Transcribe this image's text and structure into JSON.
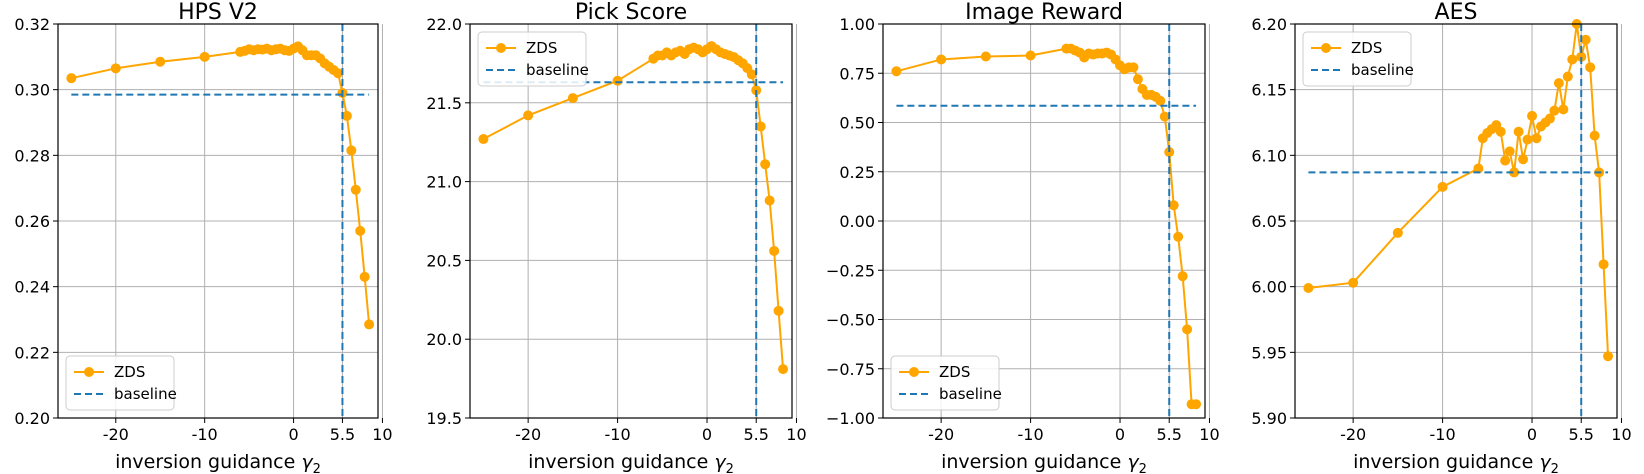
{
  "chart_data": [
    {
      "type": "line",
      "title": "HPS V2",
      "xlabel": "inversion guidance γ₂",
      "ylabel": "",
      "xlim": [
        -26.5,
        9.5
      ],
      "ylim": [
        0.2,
        0.32
      ],
      "x_ticks": [
        -20,
        -10,
        0,
        5.5,
        10
      ],
      "x_tick_labels": [
        "-20",
        "-10",
        "0",
        "5.5",
        "10"
      ],
      "y_ticks": [
        0.2,
        0.22,
        0.24,
        0.26,
        0.28,
        0.3,
        0.32
      ],
      "y_tick_labels": [
        "0.20",
        "0.22",
        "0.24",
        "0.26",
        "0.28",
        "0.30",
        "0.32"
      ],
      "grid": true,
      "legend_position": "lower-left",
      "series": [
        {
          "name": "ZDS",
          "color": "#ffa500",
          "style": "line-markers",
          "x": [
            -25,
            -20,
            -15,
            -10,
            -6,
            -5.5,
            -5,
            -4.5,
            -4,
            -3.5,
            -3,
            -2.5,
            -2,
            -1.5,
            -1,
            -0.5,
            0,
            0.5,
            1,
            1.5,
            2,
            2.5,
            3,
            3.5,
            4,
            4.5,
            5,
            5.5,
            6,
            6.5,
            7,
            7.5,
            8,
            8.5
          ],
          "y": [
            0.3035,
            0.3065,
            0.3085,
            0.31,
            0.3115,
            0.3118,
            0.3123,
            0.312,
            0.3123,
            0.3122,
            0.3125,
            0.312,
            0.3123,
            0.3125,
            0.312,
            0.3118,
            0.3125,
            0.3132,
            0.312,
            0.3105,
            0.3105,
            0.3105,
            0.3095,
            0.308,
            0.307,
            0.306,
            0.305,
            0.299,
            0.292,
            0.2815,
            0.2695,
            0.257,
            0.243,
            0.2285
          ]
        },
        {
          "name": "baseline",
          "color": "#1f77b4",
          "style": "dashed",
          "x": [
            -25,
            8.5
          ],
          "y": [
            0.2985,
            0.2985
          ]
        }
      ],
      "vline": 5.5
    },
    {
      "type": "line",
      "title": "Pick Score",
      "xlabel": "inversion guidance γ₂",
      "ylabel": "",
      "xlim": [
        -26.5,
        9.5
      ],
      "ylim": [
        19.5,
        22.0
      ],
      "x_ticks": [
        -20,
        -10,
        0,
        5.5,
        10
      ],
      "x_tick_labels": [
        "-20",
        "-10",
        "0",
        "5.5",
        "10"
      ],
      "y_ticks": [
        19.5,
        20.0,
        20.5,
        21.0,
        21.5,
        22.0
      ],
      "y_tick_labels": [
        "19.5",
        "20.0",
        "20.5",
        "21.0",
        "21.5",
        "22.0"
      ],
      "grid": true,
      "legend_position": "upper-left",
      "series": [
        {
          "name": "ZDS",
          "color": "#ffa500",
          "style": "line-markers",
          "x": [
            -25,
            -20,
            -15,
            -10,
            -6,
            -5.5,
            -5,
            -4.5,
            -4,
            -3.5,
            -3,
            -2.5,
            -2,
            -1.5,
            -1,
            -0.5,
            0,
            0.5,
            1,
            1.5,
            2,
            2.5,
            3,
            3.5,
            4,
            4.5,
            5,
            5.5,
            6,
            6.5,
            7,
            7.5,
            8,
            8.5
          ],
          "y": [
            21.27,
            21.42,
            21.53,
            21.64,
            21.78,
            21.8,
            21.8,
            21.82,
            21.8,
            21.82,
            21.83,
            21.81,
            21.84,
            21.85,
            21.84,
            21.82,
            21.84,
            21.86,
            21.84,
            21.82,
            21.81,
            21.8,
            21.79,
            21.77,
            21.75,
            21.72,
            21.68,
            21.58,
            21.35,
            21.11,
            20.88,
            20.56,
            20.18,
            19.81
          ]
        },
        {
          "name": "baseline",
          "color": "#1f77b4",
          "style": "dashed",
          "x": [
            -25,
            8.5
          ],
          "y": [
            21.63,
            21.63
          ]
        }
      ],
      "vline": 5.5
    },
    {
      "type": "line",
      "title": "Image Reward",
      "xlabel": "inversion guidance γ₂",
      "ylabel": "",
      "xlim": [
        -26.5,
        9.5
      ],
      "ylim": [
        -1.0,
        1.0
      ],
      "x_ticks": [
        -20,
        -10,
        0,
        5.5,
        10
      ],
      "x_tick_labels": [
        "-20",
        "-10",
        "0",
        "5.5",
        "10"
      ],
      "y_ticks": [
        -1.0,
        -0.75,
        -0.5,
        -0.25,
        0.0,
        0.25,
        0.5,
        0.75,
        1.0
      ],
      "y_tick_labels": [
        "−1.00",
        "−0.75",
        "−0.50",
        "−0.25",
        "0.00",
        "0.25",
        "0.50",
        "0.75",
        "1.00"
      ],
      "grid": true,
      "legend_position": "lower-left",
      "series": [
        {
          "name": "ZDS",
          "color": "#ffa500",
          "style": "line-markers",
          "x": [
            -25,
            -20,
            -15,
            -10,
            -6,
            -5.5,
            -5,
            -4.5,
            -4,
            -3.5,
            -3,
            -2.5,
            -2,
            -1.5,
            -1,
            -0.5,
            0,
            0.5,
            1,
            1.5,
            2,
            2.5,
            3,
            3.5,
            4,
            4.5,
            5,
            5.5,
            6,
            6.5,
            7,
            7.5,
            8,
            8.5
          ],
          "y": [
            0.76,
            0.82,
            0.835,
            0.84,
            0.875,
            0.875,
            0.865,
            0.855,
            0.83,
            0.85,
            0.845,
            0.85,
            0.85,
            0.855,
            0.845,
            0.82,
            0.79,
            0.77,
            0.78,
            0.78,
            0.72,
            0.67,
            0.64,
            0.64,
            0.63,
            0.61,
            0.53,
            0.35,
            0.08,
            -0.08,
            -0.28,
            -0.55,
            -0.93,
            -0.93
          ],
          "note_exclude_last": true
        },
        {
          "name": "baseline",
          "color": "#1f77b4",
          "style": "dashed",
          "x": [
            -25,
            8.5
          ],
          "y": [
            0.585,
            0.585
          ]
        }
      ],
      "vline": 5.5
    },
    {
      "type": "line",
      "title": "AES",
      "xlabel": "inversion guidance γ₂",
      "ylabel": "",
      "xlim": [
        -26.5,
        9.5
      ],
      "ylim": [
        5.9,
        6.2
      ],
      "x_ticks": [
        -20,
        -10,
        0,
        5.5,
        10
      ],
      "x_tick_labels": [
        "-20",
        "-10",
        "0",
        "5.5",
        "10"
      ],
      "y_ticks": [
        5.9,
        5.95,
        6.0,
        6.05,
        6.1,
        6.15,
        6.2
      ],
      "y_tick_labels": [
        "5.90",
        "5.95",
        "6.00",
        "6.05",
        "6.10",
        "6.15",
        "6.20"
      ],
      "grid": true,
      "legend_position": "upper-left",
      "series": [
        {
          "name": "ZDS",
          "color": "#ffa500",
          "style": "line-markers",
          "x": [
            -25,
            -20,
            -15,
            -10,
            -6,
            -5.5,
            -5,
            -4.5,
            -4,
            -3.5,
            -3,
            -2.5,
            -2,
            -1.5,
            -1,
            -0.5,
            0,
            0.5,
            1,
            1.5,
            2,
            2.5,
            3,
            3.5,
            4,
            4.5,
            5,
            5.5,
            6,
            6.5,
            7,
            7.5,
            8,
            8.5
          ],
          "y": [
            5.999,
            6.003,
            6.041,
            6.076,
            6.09,
            6.113,
            6.117,
            6.12,
            6.123,
            6.118,
            6.096,
            6.103,
            6.087,
            6.118,
            6.097,
            6.112,
            6.13,
            6.113,
            6.122,
            6.125,
            6.128,
            6.134,
            6.155,
            6.135,
            6.16,
            6.173,
            6.2,
            6.175,
            6.188,
            6.167,
            6.115,
            6.087,
            6.017,
            5.947
          ]
        },
        {
          "name": "baseline",
          "color": "#1f77b4",
          "style": "dashed",
          "x": [
            -25,
            8.5
          ],
          "y": [
            6.087,
            6.087
          ]
        }
      ],
      "vline": 5.5
    }
  ]
}
